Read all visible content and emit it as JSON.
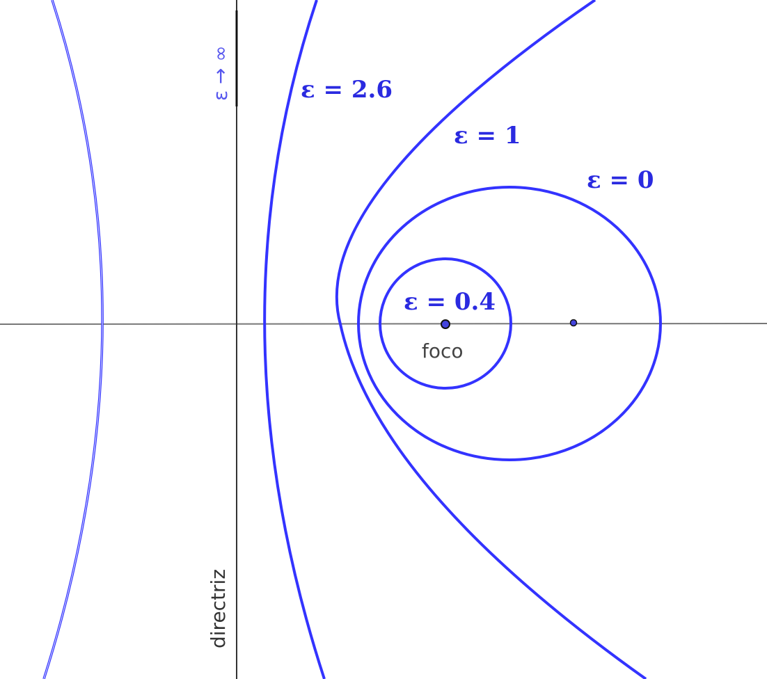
{
  "colors": {
    "curve": "#3333ff",
    "curve_faint": "#8888ff",
    "axis": "#777777",
    "directrix": "#333333",
    "text": "#444444",
    "label": "#2a2ae0",
    "infinity_label": "#5555ee"
  },
  "labels": {
    "eps_2_6": "ε = 2.6",
    "eps_1": "ε = 1",
    "eps_0": "ε = 0",
    "eps_0_4": "ε = 0.4",
    "eps_infinity": "ε → ∞",
    "focus": "foco",
    "directrix": "directriz"
  }
}
